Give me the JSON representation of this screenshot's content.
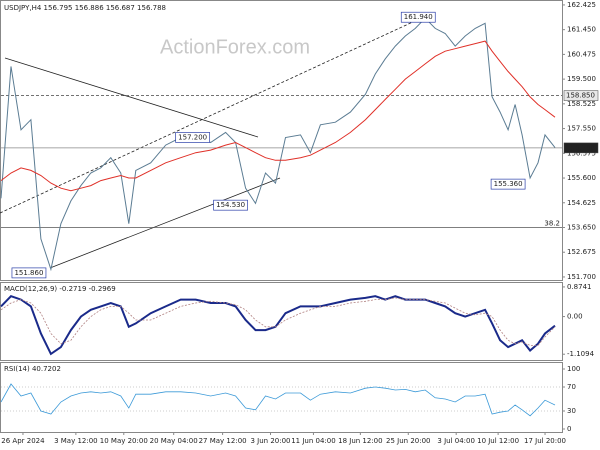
{
  "header": {
    "symbol_info": "USDJPY,H4 156.795 156.886 156.687 156.788",
    "watermark": "ActionForex.com"
  },
  "chart_data": [
    {
      "type": "line",
      "x": [
        0,
        2,
        4,
        6,
        8,
        10,
        12,
        14,
        16,
        18,
        20,
        22,
        24,
        25.6,
        27,
        30,
        33,
        36,
        39,
        42,
        45,
        47,
        49,
        51,
        53,
        55,
        57,
        60,
        62,
        64,
        67,
        70,
        73,
        75,
        77,
        79,
        81,
        83,
        85,
        87,
        89,
        91,
        93,
        95,
        97,
        98.4,
        100,
        101.6,
        103,
        104.4,
        106,
        107.6,
        109,
        111
      ],
      "xlim": [
        0,
        112.4
      ],
      "xticks": [
        {
          "value": 4.4,
          "label": "26 Apr 2024"
        },
        {
          "value": 15,
          "label": "3 May 12:00"
        },
        {
          "value": 24.6,
          "label": "10 May 20:00"
        },
        {
          "value": 34.6,
          "label": "20 May 04:00"
        },
        {
          "value": 44.4,
          "label": "27 May 12:00"
        },
        {
          "value": 54,
          "label": "3 Jun 20:00"
        },
        {
          "value": 62.6,
          "label": "11 Jun 04:00"
        },
        {
          "value": 72,
          "label": "18 Jun 12:00"
        },
        {
          "value": 81.6,
          "label": "25 Jun 20:00"
        },
        {
          "value": 91.2,
          "label": "3 Jul 04:00"
        },
        {
          "value": 99.6,
          "label": "10 Jul 12:00"
        },
        {
          "value": 109,
          "label": "17 Jul 20:00"
        }
      ],
      "ylim": [
        151.58,
        162.58
      ],
      "yticks": [
        162.425,
        {
          "value": 161.45,
          "label": "161.450"
        },
        160.475,
        {
          "value": 159.5,
          "label": "159.500"
        },
        158.525,
        {
          "value": 157.55,
          "label": "157.550"
        },
        156.575,
        {
          "value": 155.6,
          "label": "155.600"
        },
        154.625,
        {
          "value": 153.65,
          "label": "153.650"
        },
        152.675,
        {
          "value": 151.7,
          "label": "151.700"
        }
      ],
      "series": [
        {
          "color": "#5b7c93",
          "values": [
            154.8,
            160.0,
            157.5,
            157.9,
            153.2,
            152.0,
            153.8,
            154.7,
            155.3,
            155.8,
            156.0,
            156.4,
            155.8,
            153.8,
            155.9,
            156.2,
            156.9,
            157.2,
            157.3,
            157.0,
            157.4,
            157.0,
            155.2,
            154.6,
            155.8,
            155.4,
            157.2,
            157.3,
            156.6,
            157.7,
            157.8,
            158.2,
            158.9,
            159.7,
            160.3,
            160.8,
            161.2,
            161.5,
            161.9,
            161.5,
            161.3,
            160.8,
            161.2,
            161.5,
            161.7,
            158.8,
            158.2,
            157.5,
            158.5,
            157.3,
            155.6,
            156.2,
            157.3,
            156.8
          ]
        },
        {
          "color": "#e03028",
          "values": [
            155.5,
            155.8,
            156.0,
            155.9,
            155.7,
            155.4,
            155.2,
            155.1,
            155.2,
            155.3,
            155.5,
            155.6,
            155.7,
            155.6,
            155.6,
            155.9,
            156.2,
            156.4,
            156.6,
            156.7,
            156.9,
            157.0,
            156.8,
            156.6,
            156.4,
            156.3,
            156.3,
            156.4,
            156.5,
            156.7,
            157.0,
            157.4,
            157.9,
            158.3,
            158.7,
            159.1,
            159.5,
            159.8,
            160.1,
            160.4,
            160.6,
            160.7,
            160.8,
            160.9,
            161.0,
            160.6,
            160.2,
            159.8,
            159.5,
            159.2,
            158.8,
            158.5,
            158.3,
            158.0
          ]
        }
      ],
      "levels": [
        {
          "value": 158.85,
          "label": "158.850",
          "style": "dashed"
        },
        {
          "value": 156.788,
          "label": "156.788",
          "style": "current"
        }
      ],
      "fibo": {
        "value": 153.65,
        "label": "38.2"
      },
      "annotations": [
        {
          "text": "161.940",
          "x": 83.6,
          "value": 161.94
        },
        {
          "text": "157.200",
          "x": 38.4,
          "value": 157.2
        },
        {
          "text": "154.530",
          "x": 46,
          "value": 154.53
        },
        {
          "text": "151.860",
          "x": 5.6,
          "value": 151.86
        },
        {
          "text": "155.360",
          "x": 101.6,
          "value": 155.36
        }
      ]
    },
    {
      "type": "line",
      "title": "MACD(12,26,9) -0.2719 -0.2969",
      "x": [
        0,
        2,
        4,
        6,
        8,
        10,
        12,
        14,
        16,
        18,
        20,
        22,
        24,
        25.6,
        27,
        30,
        33,
        36,
        39,
        42,
        45,
        47,
        49,
        51,
        53,
        55,
        57,
        60,
        62,
        64,
        67,
        70,
        73,
        75,
        77,
        79,
        81,
        83,
        85,
        87,
        89,
        91,
        93,
        95,
        97,
        98.4,
        100,
        101.6,
        103,
        104.4,
        106,
        107.6,
        109,
        111
      ],
      "xlim": [
        0,
        112.4
      ],
      "ylim": [
        -1.28,
        0.99
      ],
      "yticks": [
        0.8741,
        {
          "value": 0,
          "label": "0.00"
        },
        -1.1094
      ],
      "series": [
        {
          "color": "#1a2a8a",
          "width": 2,
          "values": [
            0.3,
            0.6,
            0.5,
            0.3,
            -0.5,
            -1.1,
            -0.9,
            -0.4,
            0.0,
            0.2,
            0.3,
            0.4,
            0.3,
            -0.3,
            -0.2,
            0.1,
            0.3,
            0.5,
            0.5,
            0.4,
            0.4,
            0.3,
            -0.1,
            -0.4,
            -0.4,
            -0.3,
            0.1,
            0.3,
            0.3,
            0.3,
            0.4,
            0.5,
            0.55,
            0.6,
            0.5,
            0.6,
            0.5,
            0.5,
            0.5,
            0.4,
            0.3,
            0.1,
            0.0,
            0.1,
            0.2,
            -0.2,
            -0.7,
            -0.9,
            -0.8,
            -0.7,
            -1.0,
            -0.8,
            -0.5,
            -0.27
          ]
        },
        {
          "color": "#b08080",
          "width": 0.8,
          "dashed": true,
          "values": [
            0.2,
            0.4,
            0.5,
            0.4,
            0.1,
            -0.5,
            -0.8,
            -0.7,
            -0.3,
            0.0,
            0.2,
            0.3,
            0.3,
            0.1,
            -0.1,
            -0.1,
            0.1,
            0.3,
            0.4,
            0.45,
            0.4,
            0.35,
            0.2,
            -0.1,
            -0.3,
            -0.3,
            -0.1,
            0.1,
            0.2,
            0.3,
            0.3,
            0.4,
            0.45,
            0.5,
            0.5,
            0.55,
            0.5,
            0.5,
            0.5,
            0.45,
            0.4,
            0.25,
            0.1,
            0.05,
            0.1,
            0.0,
            -0.4,
            -0.7,
            -0.8,
            -0.75,
            -0.85,
            -0.85,
            -0.6,
            -0.3
          ]
        }
      ]
    },
    {
      "type": "line",
      "title": "RSI(14) 40.7202",
      "x": [
        0,
        2,
        4,
        6,
        8,
        10,
        12,
        14,
        16,
        18,
        20,
        22,
        24,
        25.6,
        27,
        30,
        33,
        36,
        39,
        42,
        45,
        47,
        49,
        51,
        53,
        55,
        57,
        60,
        62,
        64,
        67,
        70,
        73,
        75,
        77,
        79,
        81,
        83,
        85,
        87,
        89,
        91,
        93,
        95,
        97,
        98.4,
        100,
        101.6,
        103,
        104.4,
        106,
        107.6,
        109,
        111
      ],
      "xlim": [
        0,
        112.4
      ],
      "ylim": [
        -5,
        110
      ],
      "yticks": [
        100,
        70,
        30,
        0
      ],
      "grid": [
        70,
        30
      ],
      "series": [
        {
          "color": "#3c9ad8",
          "width": 0.8,
          "values": [
            45,
            75,
            55,
            60,
            30,
            25,
            45,
            55,
            60,
            62,
            60,
            62,
            55,
            35,
            58,
            58,
            62,
            62,
            60,
            55,
            60,
            55,
            35,
            32,
            55,
            50,
            60,
            60,
            48,
            58,
            62,
            60,
            68,
            70,
            68,
            65,
            66,
            62,
            65,
            52,
            50,
            45,
            55,
            55,
            58,
            25,
            28,
            30,
            40,
            32,
            22,
            35,
            48,
            40
          ]
        }
      ]
    }
  ]
}
